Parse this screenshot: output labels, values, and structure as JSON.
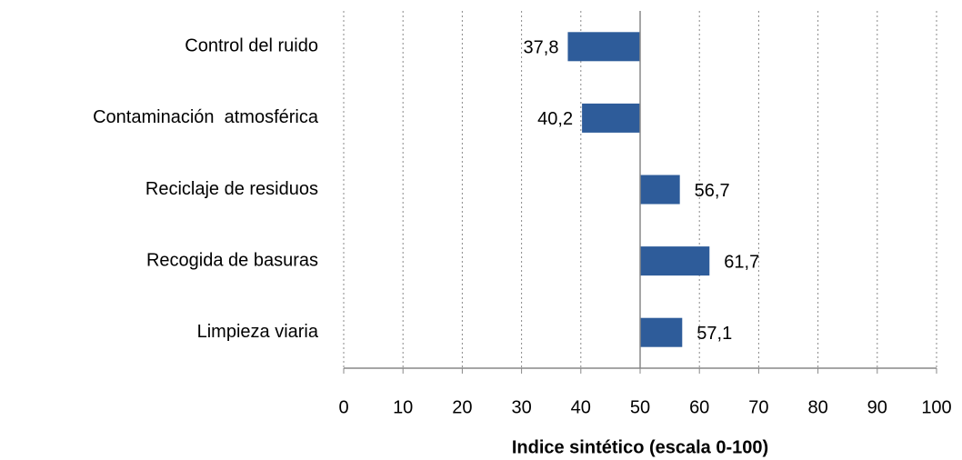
{
  "chart_data": {
    "type": "bar",
    "orientation": "horizontal",
    "categories": [
      "Control del ruido",
      "Contaminación  atmosférica",
      "Reciclaje de residuos",
      "Recogida de basuras",
      "Limpieza viaria"
    ],
    "values": [
      37.8,
      40.2,
      56.7,
      61.7,
      57.1
    ],
    "value_labels": [
      "37,8",
      "40,2",
      "56,7",
      "61,7",
      "57,1"
    ],
    "color": "#2e5c9a",
    "base": 50,
    "xlabel": "Indice sintético  (escala  0-100)",
    "xlim": [
      0,
      100
    ],
    "xticks": [
      0,
      10,
      20,
      30,
      40,
      50,
      60,
      70,
      80,
      90,
      100
    ],
    "grid": true
  }
}
